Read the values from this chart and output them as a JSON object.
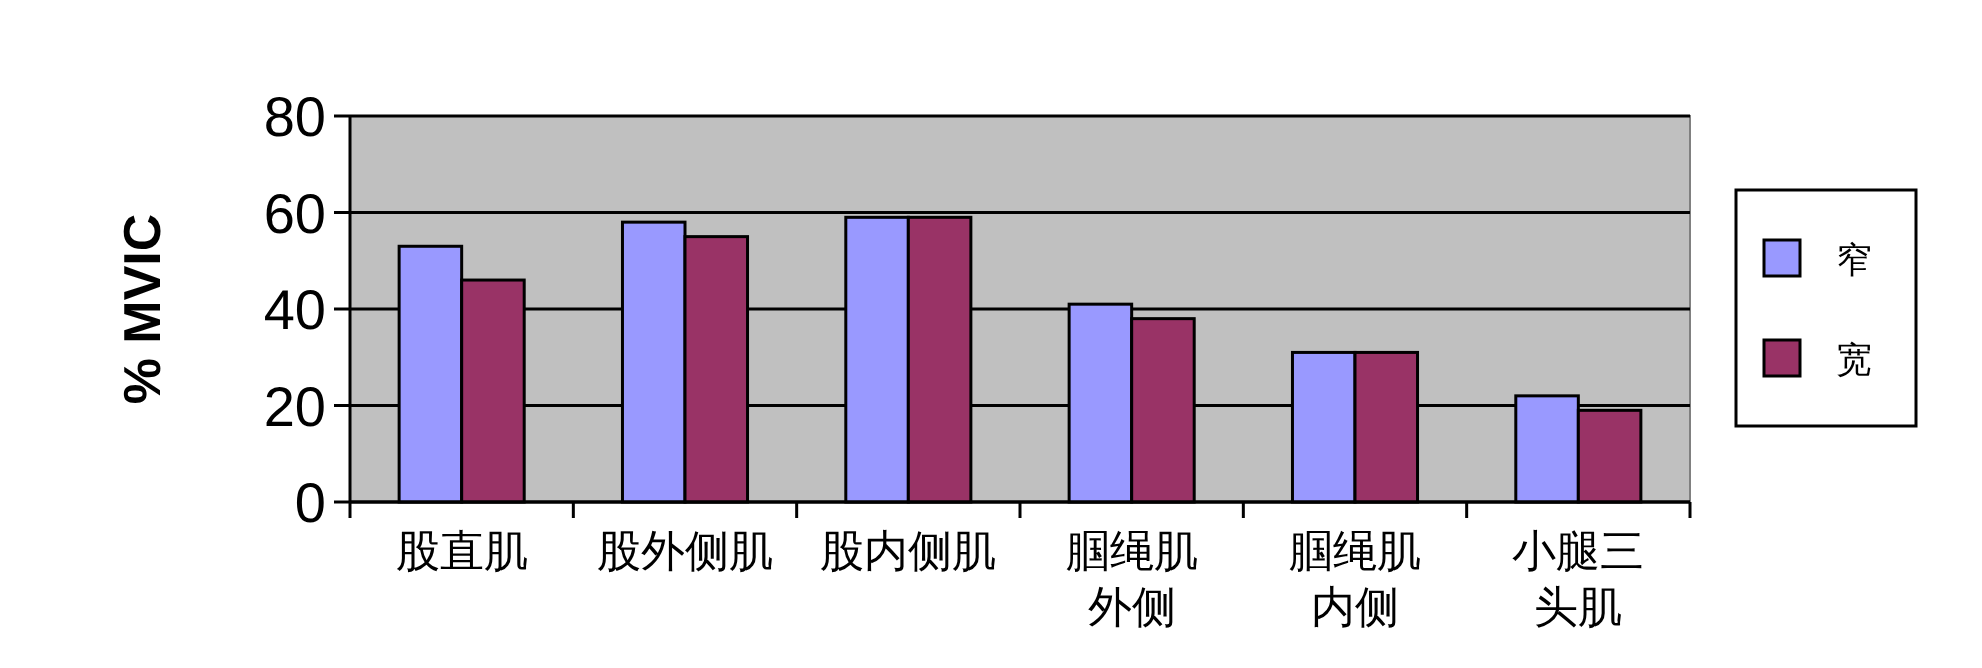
{
  "chart_data": {
    "type": "bar",
    "ylabel": "% MVIC",
    "categories": [
      "股直肌",
      "股外侧肌",
      "股内侧肌",
      "腘绳肌外侧",
      "腘绳肌内侧",
      "小腿三头肌"
    ],
    "series": [
      {
        "name": "窄",
        "color": "#9999ff",
        "values": [
          53,
          58,
          59,
          41,
          31,
          22
        ]
      },
      {
        "name": "宽",
        "color": "#993366",
        "values": [
          46,
          55,
          59,
          38,
          31,
          19
        ]
      }
    ],
    "ylim": [
      0,
      80
    ],
    "yticks": [
      0,
      20,
      40,
      60,
      80
    ],
    "grid": "y",
    "legend": "right"
  }
}
